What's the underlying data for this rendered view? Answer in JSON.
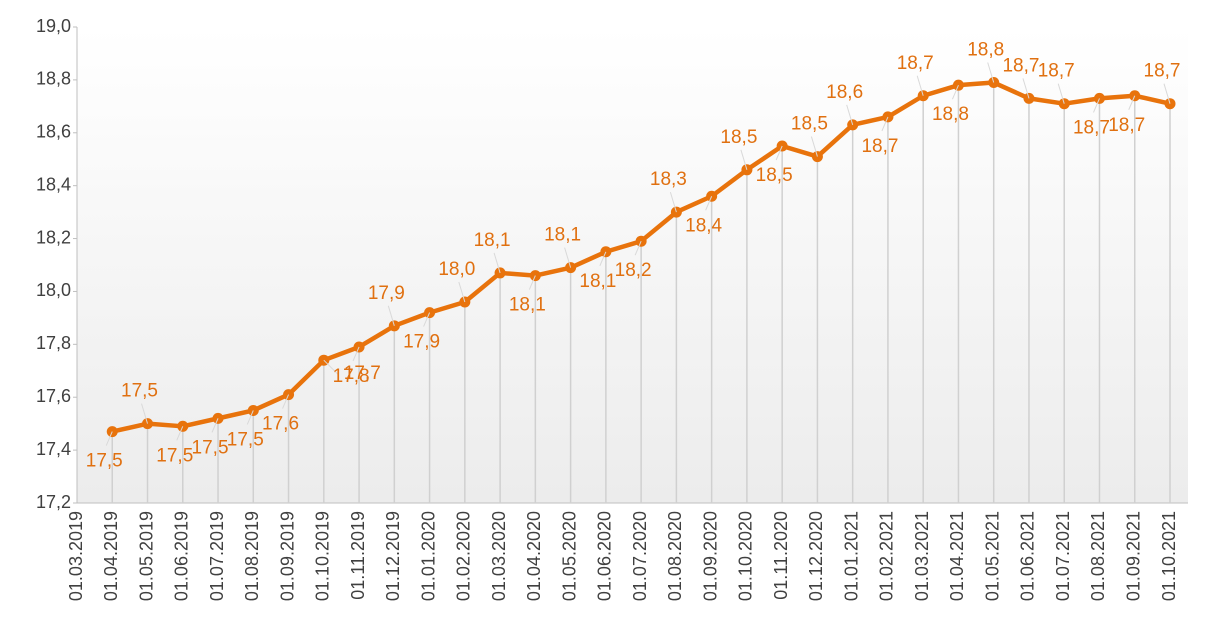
{
  "chart_data": {
    "type": "line",
    "categories": [
      "01.03.2019",
      "01.04.2019",
      "01.05.2019",
      "01.06.2019",
      "01.07.2019",
      "01.08.2019",
      "01.09.2019",
      "01.10.2019",
      "01.11.2019",
      "01.12.2019",
      "01.01.2020",
      "01.02.2020",
      "01.03.2020",
      "01.04.2020",
      "01.05.2020",
      "01.06.2020",
      "01.07.2020",
      "01.08.2020",
      "01.09.2020",
      "01.10.2020",
      "01.11.2020",
      "01.12.2020",
      "01.01.2021",
      "01.02.2021",
      "01.03.2021",
      "01.04.2021",
      "01.05.2021",
      "01.06.2021",
      "01.07.2021",
      "01.08.2021",
      "01.09.2021",
      "01.10.2021"
    ],
    "values": [
      null,
      17.47,
      17.5,
      17.49,
      17.52,
      17.55,
      17.61,
      17.74,
      17.79,
      17.87,
      17.92,
      17.96,
      18.07,
      18.06,
      18.09,
      18.15,
      18.19,
      18.3,
      18.36,
      18.46,
      18.55,
      18.51,
      18.63,
      18.66,
      18.74,
      18.78,
      18.79,
      18.73,
      18.71,
      18.73,
      18.74,
      18.71
    ],
    "value_labels": [
      null,
      "17,5",
      "17,5",
      "17,5",
      "17,5",
      "17,5",
      "17,6",
      "17,7",
      "17,8",
      "17,9",
      "17,9",
      "18,0",
      "18,1",
      "18,1",
      "18,1",
      "18,1",
      "18,2",
      "18,3",
      "18,4",
      "18,5",
      "18,5",
      "18,5",
      "18,6",
      "18,7",
      "18,7",
      "18,8",
      "18,8",
      "18,7",
      "18,7",
      "18,7",
      "18,7",
      "18,7"
    ],
    "color": "#e8730c",
    "ylim": [
      17.2,
      19.0
    ],
    "yticks": [
      {
        "value": 17.2,
        "label": "17,2"
      },
      {
        "value": 17.4,
        "label": "17,4"
      },
      {
        "value": 17.6,
        "label": "17,6"
      },
      {
        "value": 17.8,
        "label": "17,8"
      },
      {
        "value": 18.0,
        "label": "18,0"
      },
      {
        "value": 18.2,
        "label": "18,2"
      },
      {
        "value": 18.4,
        "label": "18,4"
      },
      {
        "value": 18.6,
        "label": "18,6"
      },
      {
        "value": 18.8,
        "label": "18,8"
      },
      {
        "value": 19.0,
        "label": "19,0"
      }
    ]
  }
}
